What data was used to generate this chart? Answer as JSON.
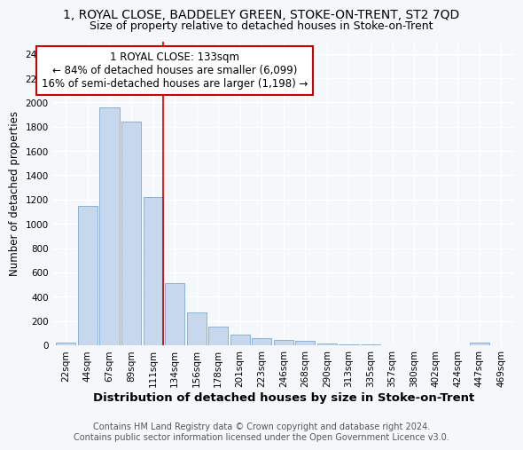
{
  "title1": "1, ROYAL CLOSE, BADDELEY GREEN, STOKE-ON-TRENT, ST2 7QD",
  "title2": "Size of property relative to detached houses in Stoke-on-Trent",
  "xlabel": "Distribution of detached houses by size in Stoke-on-Trent",
  "ylabel": "Number of detached properties",
  "categories": [
    "22sqm",
    "44sqm",
    "67sqm",
    "89sqm",
    "111sqm",
    "134sqm",
    "156sqm",
    "178sqm",
    "201sqm",
    "223sqm",
    "246sqm",
    "268sqm",
    "290sqm",
    "313sqm",
    "335sqm",
    "357sqm",
    "380sqm",
    "402sqm",
    "424sqm",
    "447sqm",
    "469sqm"
  ],
  "values": [
    22,
    1150,
    1960,
    1840,
    1220,
    515,
    270,
    150,
    90,
    55,
    40,
    35,
    14,
    8,
    4,
    3,
    2,
    1,
    1,
    18,
    1
  ],
  "bar_color": "#c8d8ec",
  "bar_edge_color": "#7aaad0",
  "marker_line_color": "#cc0000",
  "annotation_text_line1": "1 ROYAL CLOSE: 133sqm",
  "annotation_text_line2": "← 84% of detached houses are smaller (6,099)",
  "annotation_text_line3": "16% of semi-detached houses are larger (1,198) →",
  "annotation_box_color": "#ffffff",
  "annotation_box_edge_color": "#cc0000",
  "ylim": [
    0,
    2500
  ],
  "yticks": [
    0,
    200,
    400,
    600,
    800,
    1000,
    1200,
    1400,
    1600,
    1800,
    2000,
    2200,
    2400
  ],
  "footnote1": "Contains HM Land Registry data © Crown copyright and database right 2024.",
  "footnote2": "Contains public sector information licensed under the Open Government Licence v3.0.",
  "background_color": "#f5f8fb",
  "grid_color": "#ffffff",
  "title1_fontsize": 10,
  "title2_fontsize": 9,
  "xlabel_fontsize": 9.5,
  "ylabel_fontsize": 8.5,
  "footnote_fontsize": 7,
  "tick_fontsize": 7.5,
  "annotation_fontsize": 8.5
}
